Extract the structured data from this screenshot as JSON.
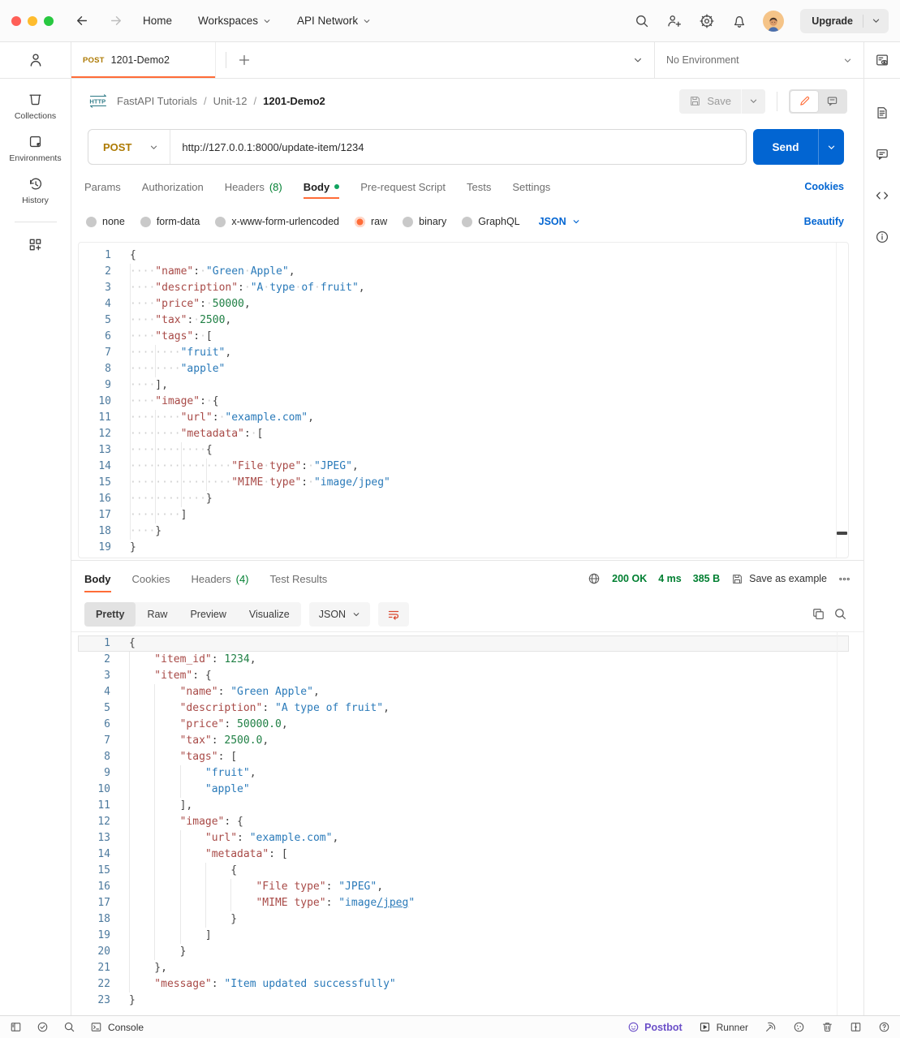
{
  "header": {
    "home": "Home",
    "workspaces": "Workspaces",
    "api_network": "API Network",
    "upgrade": "Upgrade"
  },
  "sidebar": {
    "collections": "Collections",
    "environments": "Environments",
    "history": "History"
  },
  "tabbar": {
    "method": "POST",
    "title": "1201-Demo2",
    "environment": "No Environment"
  },
  "toolbar": {
    "http_badge": "HTTP",
    "collection": "FastAPI Tutorials",
    "folder": "Unit-12",
    "request_name": "1201-Demo2",
    "save_label": "Save"
  },
  "request": {
    "method": "POST",
    "url": "http://127.0.0.1:8000/update-item/1234",
    "send_label": "Send",
    "tabs": {
      "params": "Params",
      "authorization": "Authorization",
      "headers": "Headers",
      "headers_count": "(8)",
      "body": "Body",
      "prerequest": "Pre-request Script",
      "tests": "Tests",
      "settings": "Settings",
      "cookies": "Cookies"
    },
    "modes": {
      "none": "none",
      "form_data": "form-data",
      "urlencoded": "x-www-form-urlencoded",
      "raw": "raw",
      "binary": "binary",
      "graphql": "GraphQL"
    },
    "language": "JSON",
    "beautify": "Beautify",
    "code": [
      {
        "i": 0,
        "s": [
          [
            "p",
            "{"
          ]
        ]
      },
      {
        "i": 1,
        "s": [
          [
            "k",
            "\"name\""
          ],
          [
            "p",
            ": "
          ],
          [
            "s",
            "\"Green Apple\""
          ],
          [
            "p",
            ","
          ]
        ]
      },
      {
        "i": 1,
        "s": [
          [
            "k",
            "\"description\""
          ],
          [
            "p",
            ": "
          ],
          [
            "s",
            "\"A type of fruit\""
          ],
          [
            "p",
            ","
          ]
        ]
      },
      {
        "i": 1,
        "s": [
          [
            "k",
            "\"price\""
          ],
          [
            "p",
            ": "
          ],
          [
            "n",
            "50000"
          ],
          [
            "p",
            ","
          ]
        ]
      },
      {
        "i": 1,
        "s": [
          [
            "k",
            "\"tax\""
          ],
          [
            "p",
            ": "
          ],
          [
            "n",
            "2500"
          ],
          [
            "p",
            ","
          ]
        ]
      },
      {
        "i": 1,
        "s": [
          [
            "k",
            "\"tags\""
          ],
          [
            "p",
            ": ["
          ]
        ]
      },
      {
        "i": 2,
        "s": [
          [
            "s",
            "\"fruit\""
          ],
          [
            "p",
            ","
          ]
        ]
      },
      {
        "i": 2,
        "s": [
          [
            "s",
            "\"apple\""
          ]
        ]
      },
      {
        "i": 1,
        "s": [
          [
            "p",
            "],"
          ]
        ]
      },
      {
        "i": 1,
        "s": [
          [
            "k",
            "\"image\""
          ],
          [
            "p",
            ": {"
          ]
        ]
      },
      {
        "i": 2,
        "s": [
          [
            "k",
            "\"url\""
          ],
          [
            "p",
            ": "
          ],
          [
            "s",
            "\"example.com\""
          ],
          [
            "p",
            ","
          ]
        ]
      },
      {
        "i": 2,
        "s": [
          [
            "k",
            "\"metadata\""
          ],
          [
            "p",
            ": ["
          ]
        ]
      },
      {
        "i": 3,
        "s": [
          [
            "p",
            "{"
          ]
        ]
      },
      {
        "i": 4,
        "s": [
          [
            "k",
            "\"File type\""
          ],
          [
            "p",
            ": "
          ],
          [
            "s",
            "\"JPEG\""
          ],
          [
            "p",
            ","
          ]
        ]
      },
      {
        "i": 4,
        "s": [
          [
            "k",
            "\"MIME type\""
          ],
          [
            "p",
            ": "
          ],
          [
            "s",
            "\"image/jpeg\""
          ]
        ]
      },
      {
        "i": 3,
        "s": [
          [
            "p",
            "}"
          ]
        ]
      },
      {
        "i": 2,
        "s": [
          [
            "p",
            "]"
          ]
        ]
      },
      {
        "i": 1,
        "s": [
          [
            "p",
            "}"
          ]
        ]
      },
      {
        "i": 0,
        "s": [
          [
            "p",
            "}"
          ]
        ]
      }
    ]
  },
  "response": {
    "tabs": {
      "body": "Body",
      "cookies": "Cookies",
      "headers": "Headers",
      "headers_count": "(4)",
      "tests": "Test Results"
    },
    "status": "200 OK",
    "time": "4 ms",
    "size": "385 B",
    "save_as_example": "Save as example",
    "views": {
      "pretty": "Pretty",
      "raw": "Raw",
      "preview": "Preview",
      "visualize": "Visualize"
    },
    "language": "JSON",
    "code": [
      {
        "i": 0,
        "s": [
          [
            "p",
            "{"
          ]
        ]
      },
      {
        "i": 1,
        "s": [
          [
            "k",
            "\"item_id\""
          ],
          [
            "p",
            ": "
          ],
          [
            "n",
            "1234"
          ],
          [
            "p",
            ","
          ]
        ]
      },
      {
        "i": 1,
        "s": [
          [
            "k",
            "\"item\""
          ],
          [
            "p",
            ": {"
          ]
        ]
      },
      {
        "i": 2,
        "s": [
          [
            "k",
            "\"name\""
          ],
          [
            "p",
            ": "
          ],
          [
            "s",
            "\"Green Apple\""
          ],
          [
            "p",
            ","
          ]
        ]
      },
      {
        "i": 2,
        "s": [
          [
            "k",
            "\"description\""
          ],
          [
            "p",
            ": "
          ],
          [
            "s",
            "\"A type of fruit\""
          ],
          [
            "p",
            ","
          ]
        ]
      },
      {
        "i": 2,
        "s": [
          [
            "k",
            "\"price\""
          ],
          [
            "p",
            ": "
          ],
          [
            "n",
            "50000.0"
          ],
          [
            "p",
            ","
          ]
        ]
      },
      {
        "i": 2,
        "s": [
          [
            "k",
            "\"tax\""
          ],
          [
            "p",
            ": "
          ],
          [
            "n",
            "2500.0"
          ],
          [
            "p",
            ","
          ]
        ]
      },
      {
        "i": 2,
        "s": [
          [
            "k",
            "\"tags\""
          ],
          [
            "p",
            ": ["
          ]
        ]
      },
      {
        "i": 3,
        "s": [
          [
            "s",
            "\"fruit\""
          ],
          [
            "p",
            ","
          ]
        ]
      },
      {
        "i": 3,
        "s": [
          [
            "s",
            "\"apple\""
          ]
        ]
      },
      {
        "i": 2,
        "s": [
          [
            "p",
            "],"
          ]
        ]
      },
      {
        "i": 2,
        "s": [
          [
            "k",
            "\"image\""
          ],
          [
            "p",
            ": {"
          ]
        ]
      },
      {
        "i": 3,
        "s": [
          [
            "k",
            "\"url\""
          ],
          [
            "p",
            ": "
          ],
          [
            "s",
            "\"example.com\""
          ],
          [
            "p",
            ","
          ]
        ]
      },
      {
        "i": 3,
        "s": [
          [
            "k",
            "\"metadata\""
          ],
          [
            "p",
            ": ["
          ]
        ]
      },
      {
        "i": 4,
        "s": [
          [
            "p",
            "{"
          ]
        ]
      },
      {
        "i": 5,
        "s": [
          [
            "k",
            "\"File type\""
          ],
          [
            "p",
            ": "
          ],
          [
            "s",
            "\"JPEG\""
          ],
          [
            "p",
            ","
          ]
        ]
      },
      {
        "i": 5,
        "s": [
          [
            "k",
            "\"MIME type\""
          ],
          [
            "p",
            ": "
          ],
          [
            "s",
            "\"image"
          ],
          [
            "su",
            "/jpeg"
          ],
          [
            "s",
            "\""
          ]
        ]
      },
      {
        "i": 4,
        "s": [
          [
            "p",
            "}"
          ]
        ]
      },
      {
        "i": 3,
        "s": [
          [
            "p",
            "]"
          ]
        ]
      },
      {
        "i": 2,
        "s": [
          [
            "p",
            "}"
          ]
        ]
      },
      {
        "i": 1,
        "s": [
          [
            "p",
            "},"
          ]
        ]
      },
      {
        "i": 1,
        "s": [
          [
            "k",
            "\"message\""
          ],
          [
            "p",
            ": "
          ],
          [
            "s",
            "\"Item updated successfully\""
          ]
        ]
      },
      {
        "i": 0,
        "s": [
          [
            "p",
            "}"
          ]
        ]
      }
    ]
  },
  "statusbar": {
    "console": "Console",
    "postbot": "Postbot",
    "runner": "Runner"
  },
  "colors": {
    "accent": "#ff6c37",
    "link_blue": "#0265d2",
    "method_post": "#ad7a03",
    "success_green": "#007f31",
    "send_bg": "#0265d2",
    "postbot_purple": "#6b4fc8",
    "code_key": "#a84a47",
    "code_string": "#2a7ab9",
    "code_number": "#208045",
    "line_number": "#4d7a9e"
  }
}
